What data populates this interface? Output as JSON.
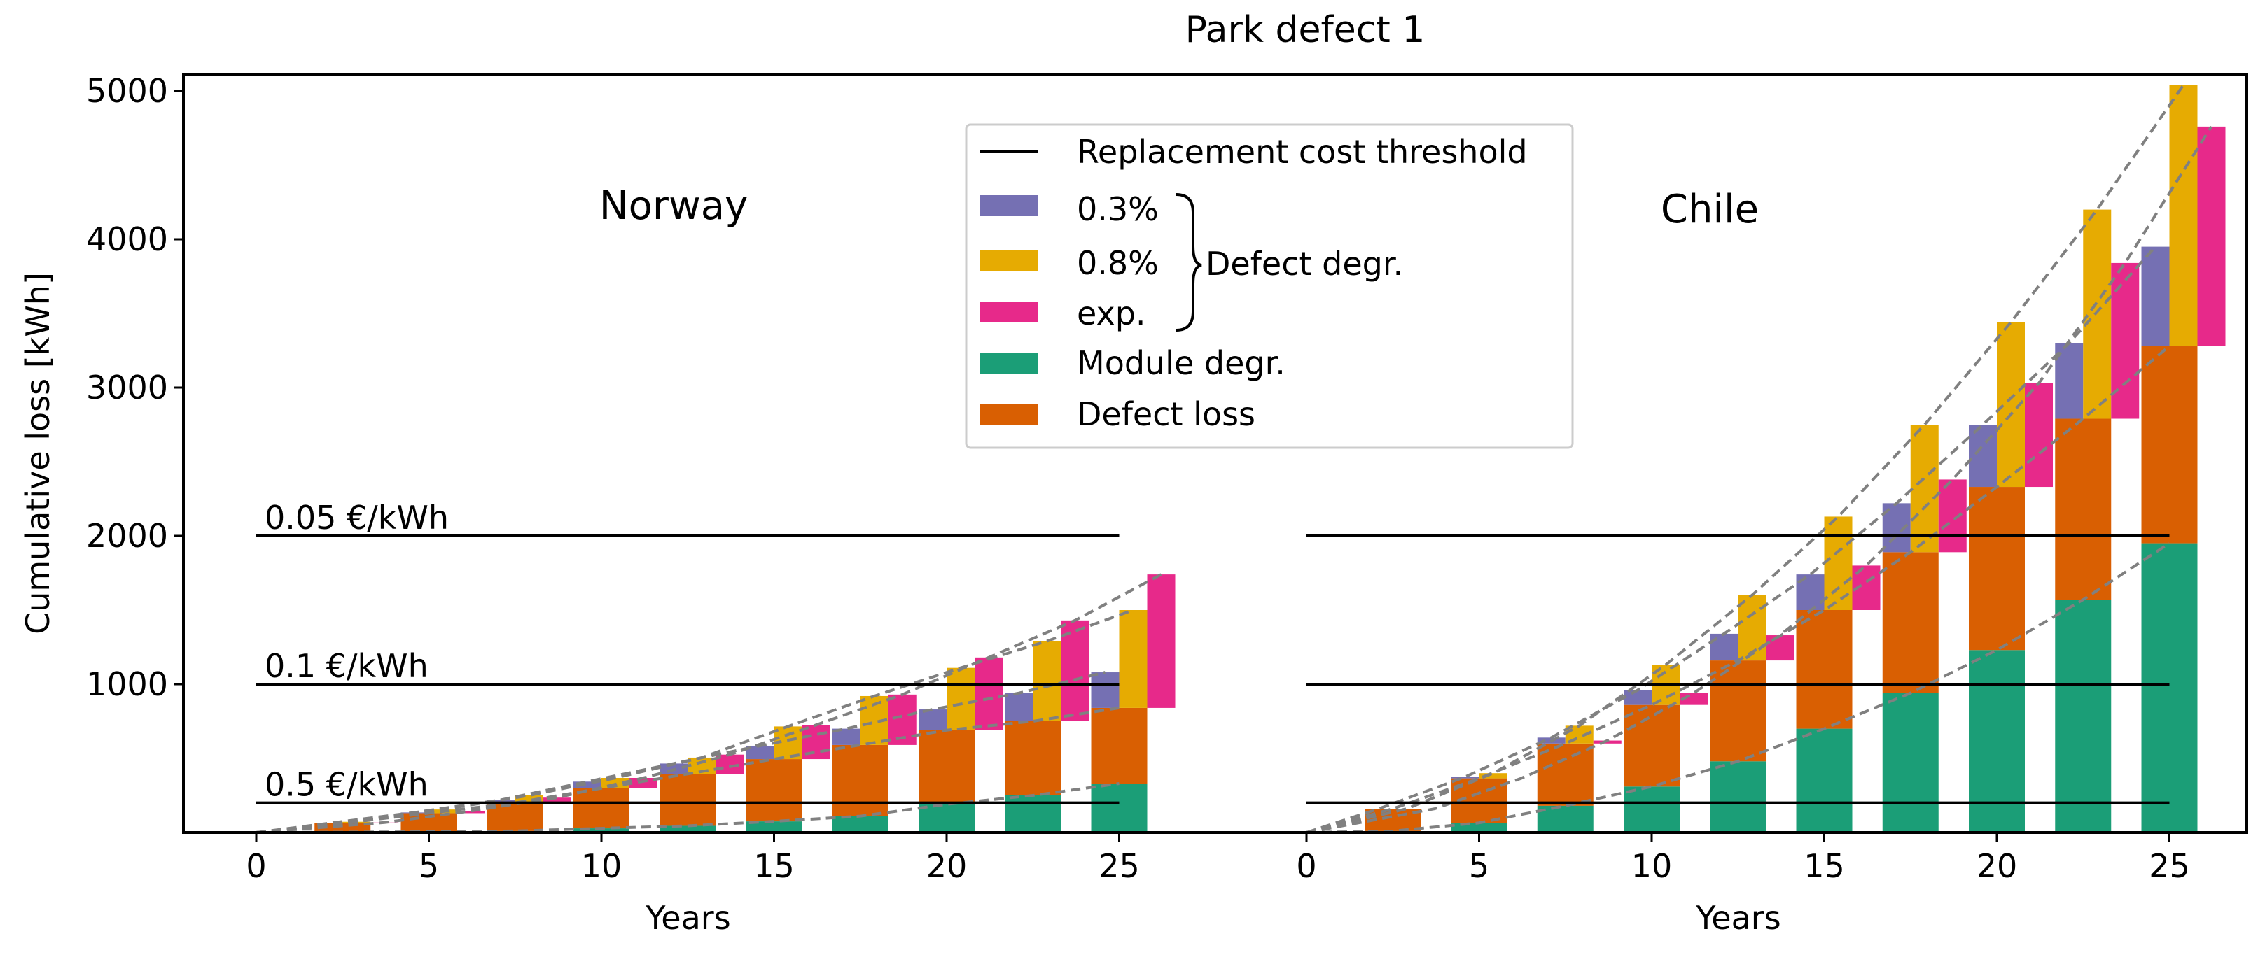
{
  "chart_data": {
    "type": "bar",
    "title": "Park defect 1",
    "ylabel": "Cumulative loss [kWh]",
    "xlabel": "Years",
    "ylim": [
      0,
      5100
    ],
    "yticks": [
      1000,
      2000,
      3000,
      4000,
      5000
    ],
    "xticks": [
      0,
      5,
      10,
      15,
      20,
      25
    ],
    "xticks_labels": [
      "0",
      "5",
      "10",
      "15",
      "20",
      "25"
    ],
    "colors": {
      "defect_loss": "#d95f02",
      "module_degr": "#1b9e77",
      "deg_03": "#7570b3",
      "deg_08": "#e6ab02",
      "deg_exp": "#e7298a",
      "trend": "#808080",
      "threshold": "#000000"
    },
    "legend": {
      "threshold": "Replacement cost threshold",
      "deg_03": "0.3%",
      "deg_08": "0.8%",
      "deg_exp": "exp.",
      "brace_label": "Defect degr.",
      "module_degr": "Module degr.",
      "defect_loss": "Defect loss"
    },
    "panels": [
      {
        "name": "Norway",
        "thresholds": [
          {
            "label": "0.05 €/kWh",
            "value": 2000
          },
          {
            "label": "0.1 €/kWh",
            "value": 1000
          },
          {
            "label": "0.5 €/kWh",
            "value": 200
          }
        ],
        "years": [
          2.5,
          5,
          7.5,
          10,
          12.5,
          15,
          17.5,
          20,
          22.5,
          25
        ],
        "module_degr": [
          2,
          5,
          10,
          28,
          45,
          75,
          110,
          190,
          250,
          330
        ],
        "defect_loss": [
          60,
          125,
          190,
          270,
          350,
          420,
          480,
          500,
          500,
          510
        ],
        "deg_03": [
          0,
          5,
          20,
          45,
          70,
          90,
          110,
          140,
          190,
          240
        ],
        "deg_08": [
          10,
          25,
          50,
          70,
          110,
          220,
          330,
          420,
          540,
          660
        ],
        "deg_exp": [
          5,
          15,
          35,
          70,
          130,
          230,
          340,
          490,
          680,
          900
        ]
      },
      {
        "name": "Chile",
        "thresholds": [],
        "years": [
          2.5,
          5,
          7.5,
          10,
          12.5,
          15,
          17.5,
          20,
          22.5,
          25
        ],
        "module_degr": [
          10,
          65,
          180,
          310,
          480,
          700,
          940,
          1230,
          1570,
          1950
        ],
        "defect_loss": [
          150,
          300,
          420,
          550,
          680,
          800,
          950,
          1100,
          1220,
          1330
        ],
        "deg_03": [
          0,
          10,
          40,
          100,
          180,
          240,
          330,
          420,
          510,
          670
        ],
        "deg_08": [
          0,
          35,
          120,
          270,
          440,
          630,
          860,
          1110,
          1410,
          1760
        ],
        "deg_exp": [
          0,
          0,
          20,
          80,
          170,
          300,
          490,
          700,
          1050,
          1480
        ]
      }
    ]
  }
}
